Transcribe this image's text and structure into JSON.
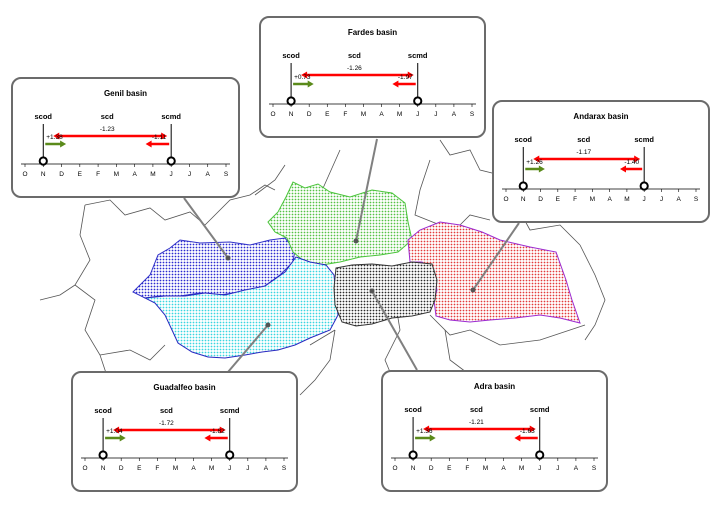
{
  "months": [
    "O",
    "N",
    "D",
    "E",
    "F",
    "M",
    "A",
    "M",
    "J",
    "J",
    "A",
    "S"
  ],
  "labels": {
    "scod": "scod",
    "scd": "scd",
    "scmd": "scmd"
  },
  "colors": {
    "arrow_red": "#ff0000",
    "arrow_green": "#5a8a1a"
  },
  "basins": [
    {
      "key": "genil",
      "title": "Genil basin",
      "scd_value": "-1.23",
      "scod_value": "+1.38",
      "scmd_value": "-1.11",
      "region_color": "#2b2bd0"
    },
    {
      "key": "fardes",
      "title": "Fardes basin",
      "scd_value": "-1.26",
      "scod_value": "+0.73",
      "scmd_value": "-1.97",
      "region_color": "#55c246"
    },
    {
      "key": "andarax",
      "title": "Andarax basin",
      "scd_value": "-1.17",
      "scod_value": "+1.26",
      "scmd_value": "-1.40",
      "region_color": "#e33b3b"
    },
    {
      "key": "guadalfeo",
      "title": "Guadalfeo basin",
      "scd_value": "-1.72",
      "scod_value": "+1.04",
      "scmd_value": "-1.82",
      "region_color": "#39d6e0"
    },
    {
      "key": "adra",
      "title": "Adra basin",
      "scd_value": "-1.21",
      "scod_value": "+1.36",
      "scmd_value": "-1.63",
      "region_color": "#2a2a2a"
    }
  ]
}
